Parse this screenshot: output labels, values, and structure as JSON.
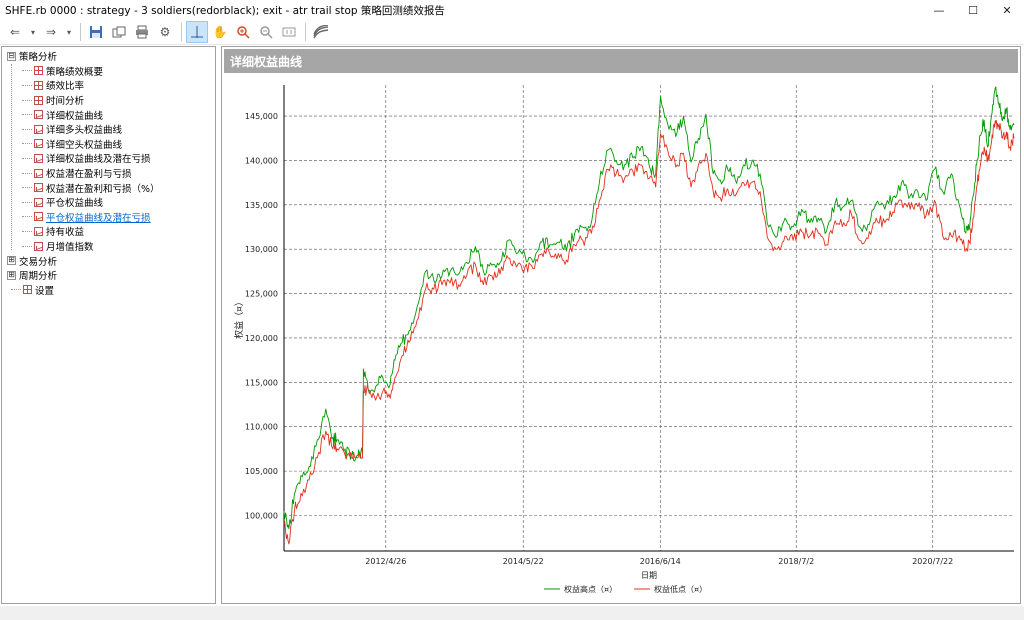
{
  "window": {
    "title": "SHFE.rb 0000 : strategy - 3 soldiers(redorblack); exit - atr trail stop 策略回测绩效报告",
    "controls": {
      "minimize": "—",
      "maximize": "☐",
      "close": "✕"
    }
  },
  "toolbar": {
    "back": "⇐",
    "forward": "⇒",
    "dropdown": "▾",
    "save": "💾",
    "copy": "⧉",
    "print": "⎙",
    "settings": "⚙",
    "crosshair": "┼",
    "pan": "✋",
    "zoom_in": "⊕",
    "zoom_out": "⊖",
    "fit": "⊡",
    "export": "≋"
  },
  "tree": {
    "root": {
      "label": "策略分析",
      "expander": "⊟"
    },
    "items": [
      {
        "label": "策略绩效概要",
        "icon": "grid"
      },
      {
        "label": "绩效比率",
        "icon": "grid"
      },
      {
        "label": "时间分析",
        "icon": "grid"
      },
      {
        "label": "详细权益曲线",
        "icon": "chart"
      },
      {
        "label": "详细多头权益曲线",
        "icon": "chart"
      },
      {
        "label": "详细空头权益曲线",
        "icon": "chart"
      },
      {
        "label": "详细权益曲线及潜在亏损",
        "icon": "chart"
      },
      {
        "label": "权益潜在盈利与亏损",
        "icon": "chart"
      },
      {
        "label": "权益潜在盈利和亏损（%）",
        "icon": "chart"
      },
      {
        "label": "平仓权益曲线",
        "icon": "chart"
      },
      {
        "label": "平仓权益曲线及潜在亏损",
        "icon": "chart",
        "link": true
      },
      {
        "label": "持有收益",
        "icon": "chart"
      },
      {
        "label": "月增值指数",
        "icon": "chart"
      }
    ],
    "groups": [
      {
        "label": "交易分析",
        "expander": "⊞"
      },
      {
        "label": "周期分析",
        "expander": "⊞"
      }
    ],
    "settings": {
      "label": "设置",
      "icon": "grid"
    }
  },
  "panel": {
    "title": "详细权益曲线"
  },
  "chart_data": {
    "type": "line",
    "title": "",
    "xlabel": "日期",
    "ylabel": "权益（¤）",
    "ylim": [
      96000,
      148500
    ],
    "yticks": [
      100000,
      105000,
      110000,
      115000,
      120000,
      125000,
      130000,
      135000,
      140000,
      145000
    ],
    "ytick_labels": [
      "100,000",
      "105,000",
      "110,000",
      "115,000",
      "120,000",
      "125,000",
      "130,000",
      "135,000",
      "140,000",
      "145,000"
    ],
    "xlim": [
      "2010-10-14",
      "2021-10-12"
    ],
    "xticks": [
      "2012-04-26",
      "2014-05-22",
      "2016-06-14",
      "2018-07-02",
      "2020-07-22"
    ],
    "xtick_labels": [
      "2012/4/26",
      "2014/5/22",
      "2016/6/14",
      "2018/7/2",
      "2020/7/22"
    ],
    "grid": true,
    "legend_position": "bottom",
    "series": [
      {
        "name": "权益高点（¤）",
        "color": "#009900",
        "x": [
          "2010-10-14",
          "2010-11-10",
          "2010-12-10",
          "2011-01-15",
          "2011-03-01",
          "2011-04-15",
          "2011-06-01",
          "2011-07-10",
          "2011-08-01",
          "2011-09-15",
          "2011-10-20",
          "2011-11-25",
          "2011-12-20",
          "2011-12-25",
          "2012-01-20",
          "2012-03-01",
          "2012-04-10",
          "2012-05-20",
          "2012-06-15",
          "2012-07-25",
          "2012-09-01",
          "2012-10-15",
          "2012-12-01",
          "2013-01-15",
          "2013-03-01",
          "2013-04-15",
          "2013-06-01",
          "2013-07-15",
          "2013-09-01",
          "2013-10-15",
          "2013-12-01",
          "2014-01-15",
          "2014-03-01",
          "2014-04-15",
          "2014-06-01",
          "2014-07-15",
          "2014-09-01",
          "2014-10-15",
          "2014-12-01",
          "2015-01-15",
          "2015-03-01",
          "2015-04-15",
          "2015-06-01",
          "2015-07-15",
          "2015-09-01",
          "2015-10-15",
          "2015-12-01",
          "2016-01-15",
          "2016-03-01",
          "2016-04-15",
          "2016-05-20",
          "2016-06-15",
          "2016-08-01",
          "2016-09-15",
          "2016-10-20",
          "2016-11-30",
          "2017-01-10",
          "2017-02-20",
          "2017-04-01",
          "2017-05-10",
          "2017-06-20",
          "2017-08-01",
          "2017-09-15",
          "2017-10-30",
          "2017-12-15",
          "2018-02-01",
          "2018-03-20",
          "2018-05-01",
          "2018-06-15",
          "2018-08-01",
          "2018-09-15",
          "2018-11-01",
          "2018-12-15",
          "2019-02-01",
          "2019-03-20",
          "2019-05-01",
          "2019-06-15",
          "2019-08-01",
          "2019-09-15",
          "2019-11-01",
          "2019-12-15",
          "2020-02-01",
          "2020-03-20",
          "2020-05-01",
          "2020-06-15",
          "2020-08-01",
          "2020-09-15",
          "2020-11-01",
          "2020-12-15",
          "2021-01-20",
          "2021-02-10",
          "2021-03-01",
          "2021-03-20",
          "2021-04-10",
          "2021-05-01",
          "2021-05-20",
          "2021-06-10",
          "2021-07-01",
          "2021-07-20",
          "2021-08-10",
          "2021-09-01",
          "2021-09-20",
          "2021-10-12"
        ],
        "values": [
          100500,
          98500,
          102500,
          104500,
          105500,
          108500,
          112000,
          108800,
          108500,
          107500,
          106800,
          106800,
          107000,
          116500,
          114200,
          114500,
          115500,
          114800,
          117500,
          119500,
          120800,
          123500,
          127500,
          126500,
          127000,
          127500,
          127200,
          128500,
          130300,
          127500,
          128200,
          128500,
          131000,
          129500,
          129300,
          128500,
          130800,
          130500,
          130800,
          129800,
          131800,
          132500,
          133000,
          137500,
          141200,
          140000,
          139500,
          140300,
          141500,
          139300,
          138500,
          147200,
          143500,
          143200,
          145000,
          139800,
          142500,
          145200,
          138500,
          137800,
          139000,
          137800,
          139500,
          139800,
          138500,
          132500,
          131500,
          133500,
          132500,
          134500,
          133000,
          133500,
          132000,
          135200,
          134800,
          135500,
          132500,
          132800,
          135200,
          134500,
          135800,
          137500,
          136000,
          136500,
          135500,
          139000,
          136500,
          138500,
          135000,
          131800,
          132500,
          136000,
          139500,
          142800,
          144500,
          141500,
          145000,
          148200,
          146500,
          144500,
          145800,
          143500,
          144000
        ]
      },
      {
        "name": "权益低点（¤）",
        "color": "#e0301e",
        "x": [
          "2010-10-14",
          "2010-11-10",
          "2010-12-10",
          "2011-01-15",
          "2011-03-01",
          "2011-04-15",
          "2011-06-01",
          "2011-07-10",
          "2011-08-01",
          "2011-09-15",
          "2011-10-20",
          "2011-11-25",
          "2011-12-20",
          "2011-12-25",
          "2012-01-20",
          "2012-03-01",
          "2012-04-10",
          "2012-05-20",
          "2012-06-15",
          "2012-07-25",
          "2012-09-01",
          "2012-10-15",
          "2012-12-01",
          "2013-01-15",
          "2013-03-01",
          "2013-04-15",
          "2013-06-01",
          "2013-07-15",
          "2013-09-01",
          "2013-10-15",
          "2013-12-01",
          "2014-01-15",
          "2014-03-01",
          "2014-04-15",
          "2014-06-01",
          "2014-07-15",
          "2014-09-01",
          "2014-10-15",
          "2014-12-01",
          "2015-01-15",
          "2015-03-01",
          "2015-04-15",
          "2015-06-01",
          "2015-07-15",
          "2015-09-01",
          "2015-10-15",
          "2015-12-01",
          "2016-01-15",
          "2016-03-01",
          "2016-04-15",
          "2016-05-20",
          "2016-06-15",
          "2016-08-01",
          "2016-09-15",
          "2016-10-20",
          "2016-11-30",
          "2017-01-10",
          "2017-02-20",
          "2017-04-01",
          "2017-05-10",
          "2017-06-20",
          "2017-08-01",
          "2017-09-15",
          "2017-10-30",
          "2017-12-15",
          "2018-02-01",
          "2018-03-20",
          "2018-05-01",
          "2018-06-15",
          "2018-08-01",
          "2018-09-15",
          "2018-11-01",
          "2018-12-15",
          "2019-02-01",
          "2019-03-20",
          "2019-05-01",
          "2019-06-15",
          "2019-08-01",
          "2019-09-15",
          "2019-11-01",
          "2019-12-15",
          "2020-02-01",
          "2020-03-20",
          "2020-05-01",
          "2020-06-15",
          "2020-08-01",
          "2020-09-15",
          "2020-11-01",
          "2020-12-15",
          "2021-01-20",
          "2021-02-10",
          "2021-03-01",
          "2021-03-20",
          "2021-04-10",
          "2021-05-01",
          "2021-05-20",
          "2021-06-10",
          "2021-07-01",
          "2021-07-20",
          "2021-08-10",
          "2021-09-01",
          "2021-09-20",
          "2021-10-12"
        ],
        "values": [
          99000,
          96800,
          100500,
          102500,
          104000,
          106500,
          109500,
          107500,
          107500,
          106800,
          106500,
          106500,
          106500,
          114000,
          114200,
          113000,
          114000,
          113200,
          115500,
          118000,
          119500,
          122000,
          125500,
          125500,
          126000,
          126200,
          126000,
          127000,
          128300,
          126000,
          127000,
          127200,
          129000,
          128000,
          128000,
          127800,
          129500,
          129500,
          129500,
          128800,
          130500,
          131000,
          131800,
          135500,
          139000,
          138500,
          138000,
          138800,
          139500,
          138000,
          137000,
          143000,
          140500,
          139500,
          140800,
          137000,
          139500,
          140800,
          136500,
          135800,
          136800,
          136000,
          137500,
          137500,
          136500,
          131000,
          130000,
          131500,
          131000,
          132000,
          131500,
          131800,
          130500,
          133200,
          133000,
          134000,
          131000,
          131200,
          133500,
          133000,
          134200,
          135500,
          134500,
          134800,
          133800,
          135500,
          131500,
          131500,
          131500,
          129800,
          130800,
          133500,
          137000,
          139500,
          141500,
          140000,
          142000,
          144500,
          144000,
          142500,
          143200,
          141500,
          142500
        ]
      }
    ]
  }
}
